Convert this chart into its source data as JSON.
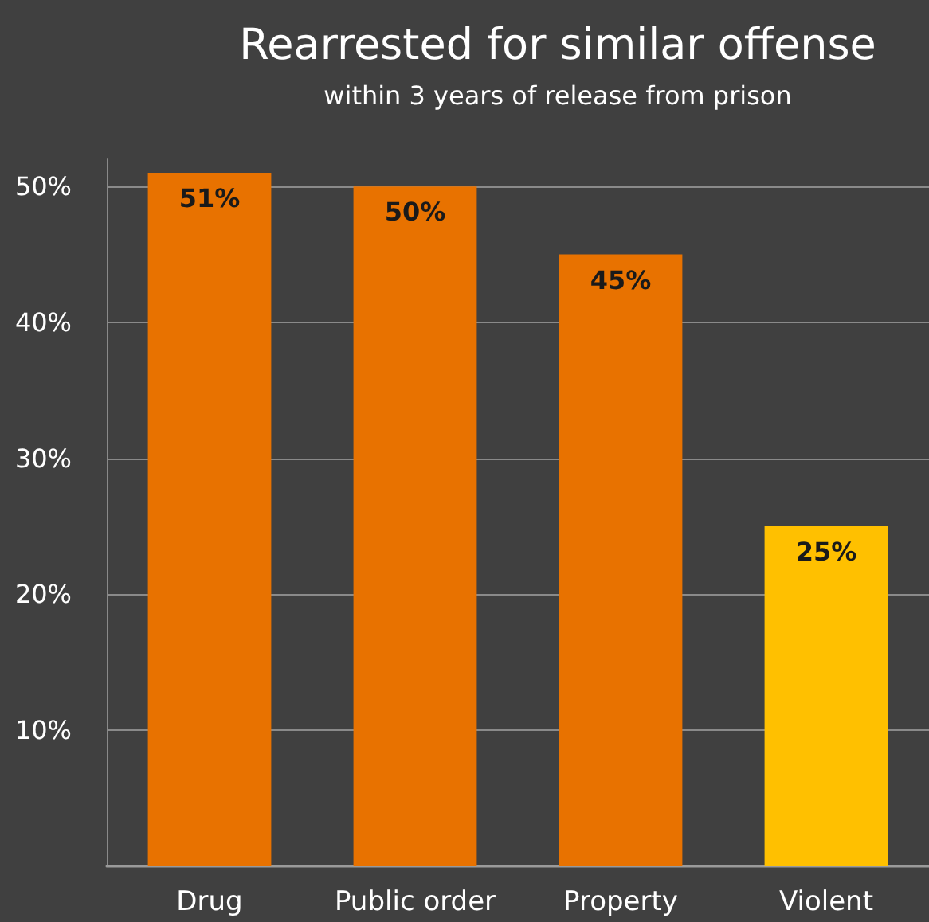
{
  "chart_data": {
    "type": "bar",
    "title": "Rearrested for similar offense",
    "subtitle": "within 3 years of release from prison",
    "categories": [
      "Drug",
      "Public order",
      "Property",
      "Violent"
    ],
    "values": [
      51,
      50,
      45,
      25
    ],
    "value_labels": [
      "51%",
      "50%",
      "45%",
      "25%"
    ],
    "colors": [
      "#e87200",
      "#e87200",
      "#e87200",
      "#ffc000"
    ],
    "ylim": [
      0,
      52
    ],
    "yticks": [
      {
        "value": 0,
        "label": null
      },
      {
        "value": 10,
        "label": "10%"
      },
      {
        "value": 20,
        "label": "20%"
      },
      {
        "value": 30,
        "label": "30%"
      },
      {
        "value": 40,
        "label": "40%"
      },
      {
        "value": 50,
        "label": "50%"
      }
    ],
    "grid": "y"
  }
}
